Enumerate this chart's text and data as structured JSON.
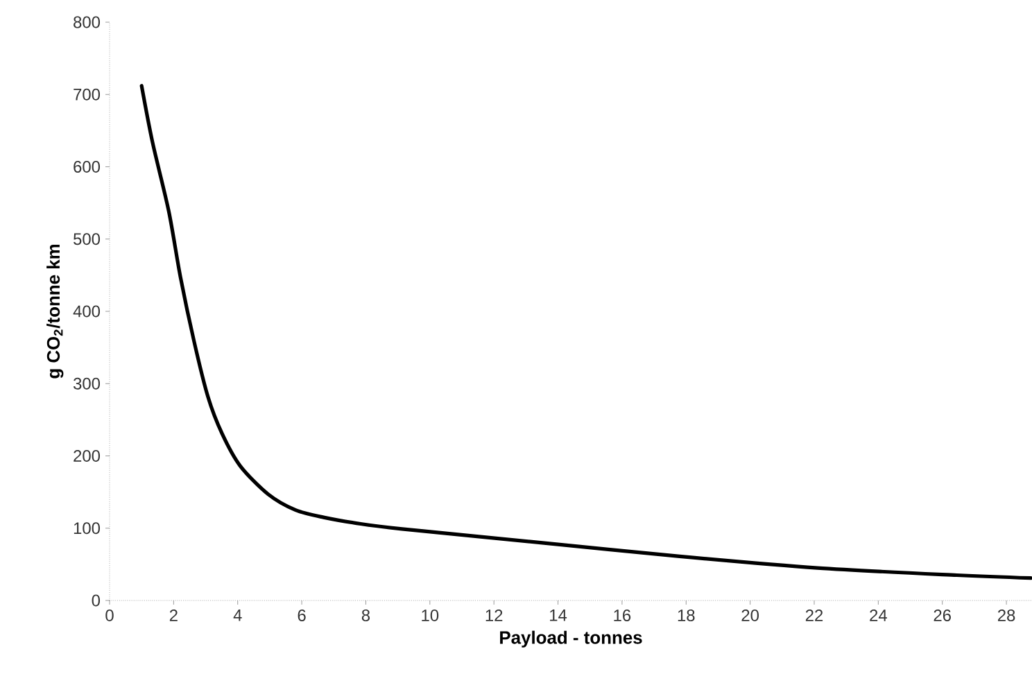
{
  "chart_data": {
    "type": "line",
    "xlabel": "Payload - tonnes",
    "ylabel": "g CO$_{2}$/tonne km",
    "series": [
      {
        "color": "#000000",
        "x": [
          1,
          1.34,
          1.85,
          2.21,
          2.64,
          3.07,
          3.51,
          4.08,
          4.95,
          5.81,
          6.68,
          7.84,
          9.13,
          13.46,
          17.8,
          22.1,
          26.45,
          28.76
        ],
        "values": [
          712,
          634,
          538,
          448,
          358,
          282,
          231,
          186,
          147,
          125,
          115,
          106,
          99,
          80,
          61,
          45,
          35,
          31
        ]
      }
    ],
    "xlim": [
      0,
      28.8
    ],
    "xticks": [
      0,
      2,
      4,
      6,
      8,
      10,
      12,
      14,
      16,
      18,
      20,
      22,
      24,
      26,
      28
    ],
    "ylim": [
      0,
      800
    ],
    "yticks": [
      0,
      100,
      200,
      300,
      400,
      500,
      600,
      700,
      800
    ],
    "marker": "none",
    "line_style": "solid"
  }
}
